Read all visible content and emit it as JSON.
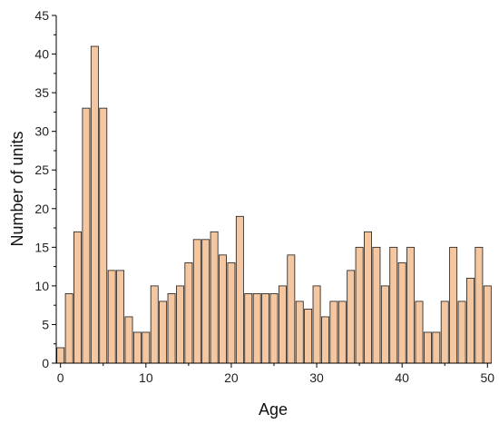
{
  "chart_data": {
    "type": "bar",
    "xlabel": "Age",
    "ylabel": "Number of units",
    "x": [
      0,
      1,
      2,
      3,
      4,
      5,
      6,
      7,
      8,
      9,
      10,
      11,
      12,
      13,
      14,
      15,
      16,
      17,
      18,
      19,
      20,
      21,
      22,
      23,
      24,
      25,
      26,
      27,
      28,
      29,
      30,
      31,
      32,
      33,
      34,
      35,
      36,
      37,
      38,
      39,
      40,
      41,
      42,
      43,
      44,
      45,
      46,
      47,
      48,
      49,
      50
    ],
    "values": [
      2,
      9,
      17,
      33,
      41,
      33,
      12,
      12,
      6,
      4,
      4,
      10,
      8,
      9,
      10,
      13,
      16,
      16,
      17,
      14,
      13,
      19,
      9,
      9,
      9,
      9,
      10,
      14,
      8,
      7,
      10,
      6,
      8,
      8,
      12,
      15,
      17,
      15,
      10,
      15,
      13,
      15,
      8,
      4,
      4,
      8,
      15,
      8,
      11,
      15,
      10
    ],
    "xlim": [
      -0.5,
      50.5
    ],
    "ylim": [
      0,
      45
    ],
    "xticks": [
      "0",
      "10",
      "20",
      "30",
      "40",
      "50"
    ],
    "yticks": [
      "0",
      "5",
      "10",
      "15",
      "20",
      "25",
      "30",
      "35",
      "40",
      "45"
    ],
    "grid": false,
    "colors": {
      "bar_fill": "#f5c7a0",
      "bar_stroke": "#1a1a1a",
      "axis": "#000000"
    }
  }
}
